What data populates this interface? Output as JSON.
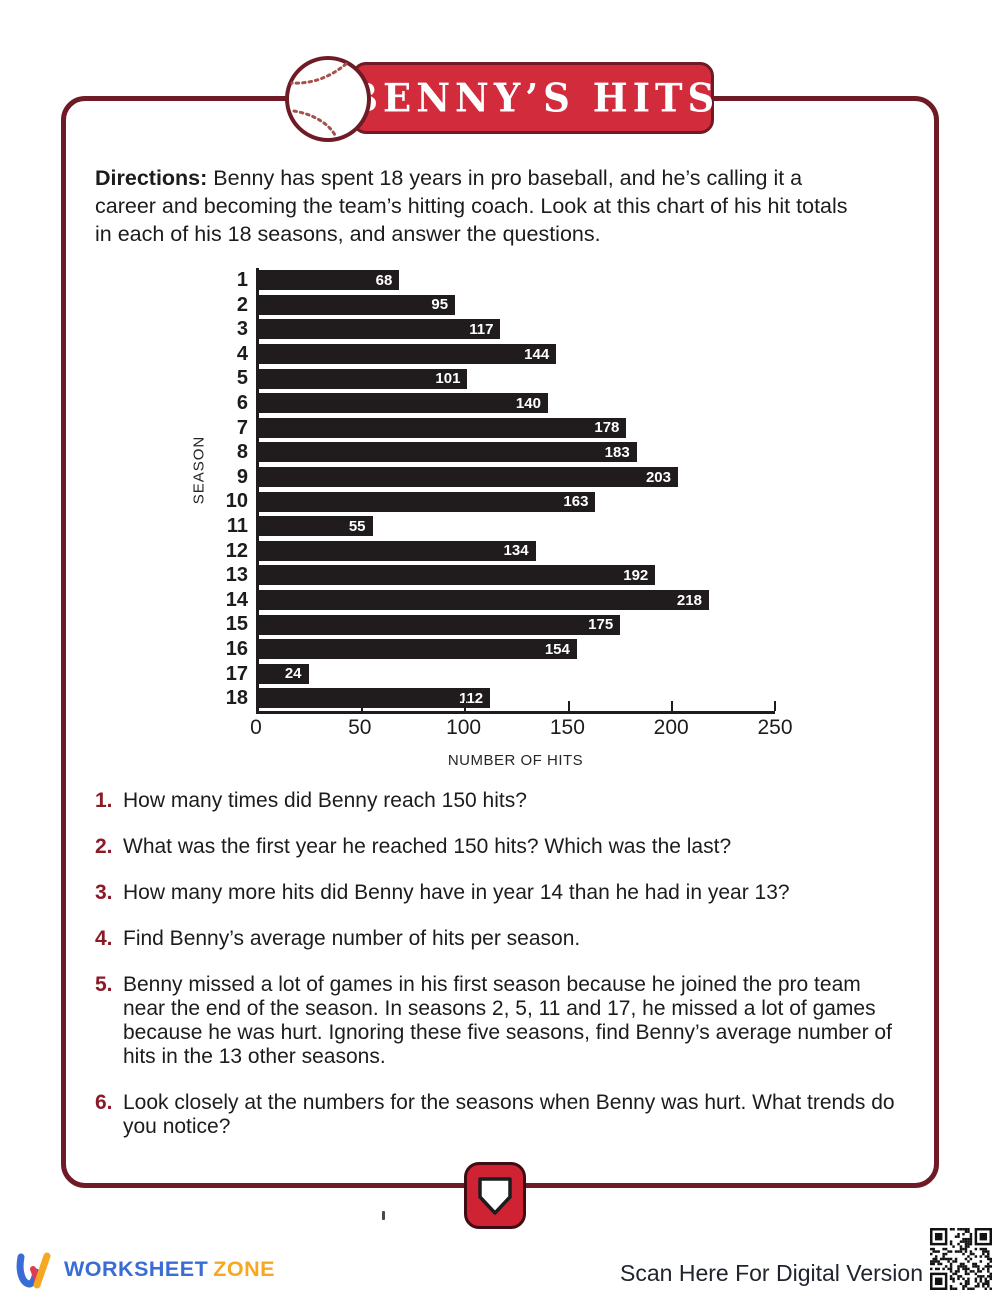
{
  "header": {
    "title": "BENNY’S HITS"
  },
  "directions": {
    "label": "Directions:",
    "text": " Benny has spent 18 years in pro baseball, and he’s calling it a career and becoming the team’s hitting coach. Look at this chart of his hit totals in each of his 18 seasons, and answer the questions."
  },
  "chart_data": {
    "type": "bar",
    "orientation": "horizontal",
    "title": "",
    "xlabel": "NUMBER OF HITS",
    "ylabel": "SEASON",
    "categories": [
      "1",
      "2",
      "3",
      "4",
      "5",
      "6",
      "7",
      "8",
      "9",
      "10",
      "11",
      "12",
      "13",
      "14",
      "15",
      "16",
      "17",
      "18"
    ],
    "values": [
      68,
      95,
      117,
      144,
      101,
      140,
      178,
      183,
      203,
      163,
      55,
      134,
      192,
      218,
      175,
      154,
      24,
      112
    ],
    "xlim": [
      0,
      250
    ],
    "xticks": [
      "0",
      "50",
      "100",
      "150",
      "200",
      "250"
    ],
    "grid": false,
    "legend": false,
    "bar_color": "#201c1d",
    "value_label_color": "#ffffff"
  },
  "questions": [
    {
      "num": "1.",
      "text": "How many times did Benny reach 150 hits?"
    },
    {
      "num": "2.",
      "text": "What was the first year he reached 150 hits? Which was the last?"
    },
    {
      "num": "3.",
      "text": "How many more hits did Benny have in year 14 than he had in year 13?"
    },
    {
      "num": "4.",
      "text": "Find Benny’s average number of hits per season."
    },
    {
      "num": "5.",
      "text": "Benny missed a lot of games in his first season because he joined the pro team near the end of the season. In seasons 2, 5, 11 and 17, he missed a lot of games because he was hurt. Ignoring these five seasons, find Benny’s average number of hits in the 13 other seasons."
    },
    {
      "num": "6.",
      "text": "Look closely at the numbers for the seasons when Benny was hurt. What trends do you notice?"
    }
  ],
  "footer": {
    "brand_worksheet": "WORKSHEET",
    "brand_zone": "ZONE",
    "scan_text": "Scan Here For Digital Version"
  },
  "colors": {
    "banner_red": "#d22b3c",
    "frame_maroon": "#6f1b26",
    "bar_black": "#201c1d",
    "question_number_red": "#8b1a28",
    "logo_blue": "#3a6cd6",
    "logo_red": "#e23b50",
    "logo_orange": "#f6a820"
  }
}
